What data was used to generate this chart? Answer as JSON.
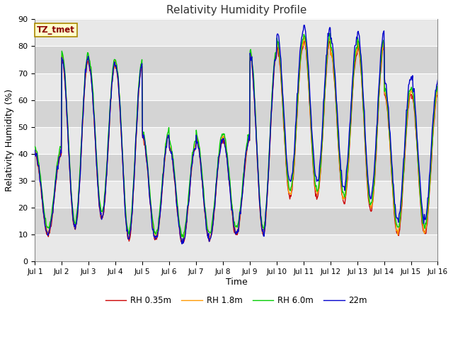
{
  "title": "Relativity Humidity Profile",
  "xlabel": "Time",
  "ylabel": "Relativity Humidity (%)",
  "ylim": [
    0,
    90
  ],
  "annotation": "TZ_tmet",
  "plot_bg_color": "#e8e8e8",
  "band_color": "#d0d0d0",
  "legend_labels": [
    "RH 0.35m",
    "RH 1.8m",
    "RH 6.0m",
    "22m"
  ],
  "line_colors": [
    "#cc0000",
    "#ff9900",
    "#00cc00",
    "#0000cc"
  ],
  "line_width": 1.0,
  "x_tick_labels": [
    "Jul 1",
    "Jul 2",
    "Jul 3",
    "Jul 4",
    "Jul 5",
    "Jul 6",
    "Jul 7",
    "Jul 8",
    "Jul 9",
    "Jul 10",
    "Jul 11",
    "Jul 12",
    "Jul 13",
    "Jul 14",
    "Jul 15",
    "Jul 16"
  ],
  "figsize": [
    6.4,
    4.8
  ],
  "dpi": 100
}
